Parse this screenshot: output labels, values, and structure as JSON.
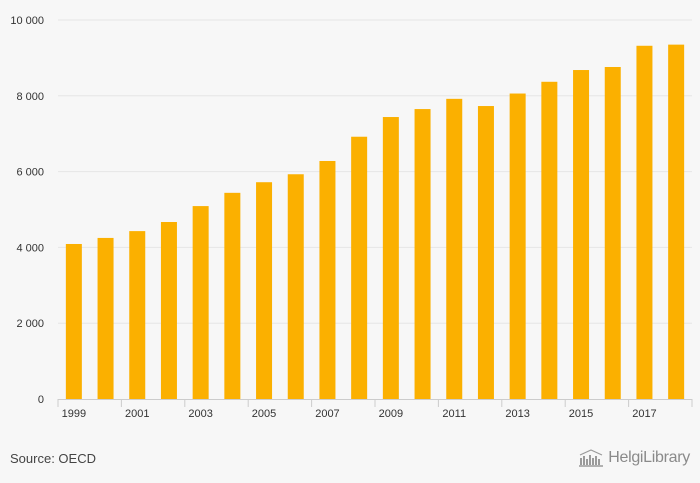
{
  "chart_data": {
    "type": "bar",
    "categories": [
      "1999",
      "2000",
      "2001",
      "2002",
      "2003",
      "2004",
      "2005",
      "2006",
      "2007",
      "2008",
      "2009",
      "2010",
      "2011",
      "2012",
      "2013",
      "2014",
      "2015",
      "2016",
      "2017",
      "2018"
    ],
    "values": [
      4090,
      4250,
      4430,
      4670,
      5090,
      5440,
      5720,
      5930,
      6280,
      6920,
      7440,
      7650,
      7920,
      7730,
      8060,
      8370,
      8680,
      8760,
      9320,
      9350
    ],
    "x_tick_labels": [
      "1999",
      "2001",
      "2003",
      "2005",
      "2007",
      "2009",
      "2011",
      "2013",
      "2015",
      "2017"
    ],
    "y_ticks": [
      0,
      2000,
      4000,
      6000,
      8000,
      10000
    ],
    "y_tick_labels": [
      "0",
      "2 000",
      "4 000",
      "6 000",
      "8 000",
      "10 000"
    ],
    "ylim": [
      0,
      10000
    ],
    "grid": true,
    "title": "",
    "xlabel": "",
    "ylabel": "",
    "bar_color": "#fbb000",
    "grid_color": "#e6e6e6",
    "axis_color": "#cccccc"
  },
  "footer": {
    "source": "Source: OECD",
    "brand": "HelgiLibrary"
  }
}
